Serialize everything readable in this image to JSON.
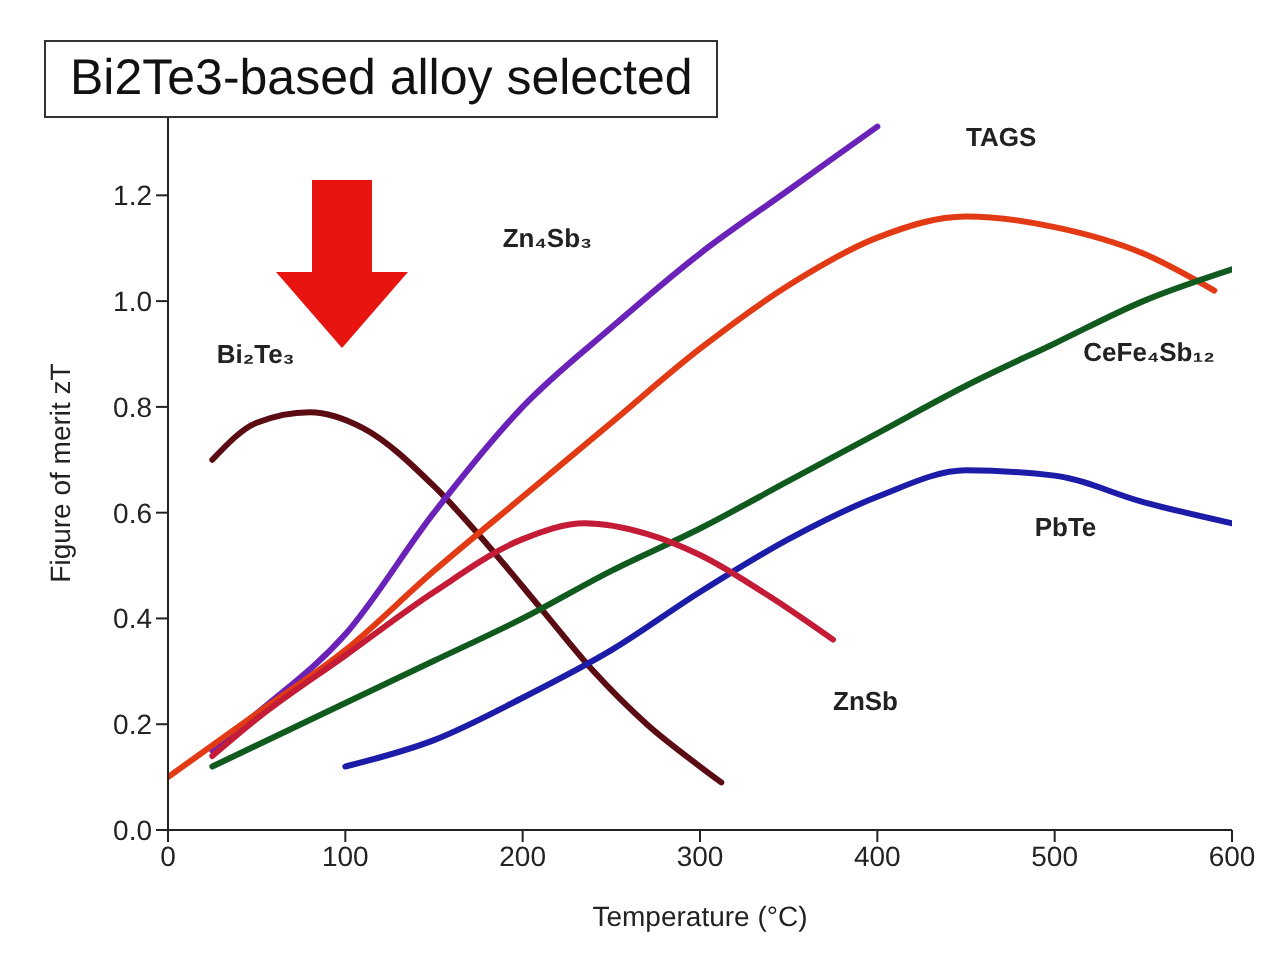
{
  "chart_data": {
    "type": "line",
    "title": "Bi2Te3-based alloy selected",
    "xlabel": "Temperature (°C)",
    "ylabel": "Figure of merit zT",
    "xlim": [
      0,
      600
    ],
    "xticks": [
      0,
      100,
      200,
      300,
      400,
      500,
      600
    ],
    "ylim": [
      0,
      1.35
    ],
    "yticks": [
      {
        "value": 0,
        "label": "0.0"
      },
      0.2,
      0.4,
      0.6,
      0.8,
      {
        "value": 1,
        "label": "1.0"
      },
      1.2
    ],
    "grid": false,
    "legend": false,
    "marker": "none",
    "line_style": "solid",
    "series": [
      {
        "name": "Bi₂Te₃",
        "color": "#5a0c12",
        "x": [
          25,
          50,
          80,
          110,
          150,
          180,
          210,
          240,
          270,
          300,
          312
        ],
        "values": [
          0.7,
          0.77,
          0.79,
          0.76,
          0.65,
          0.54,
          0.42,
          0.3,
          0.2,
          0.12,
          0.09
        ]
      },
      {
        "name": "Zn₄Sb₃",
        "color": "#6a22b8",
        "x": [
          25,
          50,
          100,
          150,
          200,
          250,
          300,
          350,
          400
        ],
        "values": [
          0.15,
          0.22,
          0.37,
          0.6,
          0.8,
          0.95,
          1.09,
          1.21,
          1.33
        ]
      },
      {
        "name": "TAGS",
        "color": "#e23a14",
        "x": [
          0,
          50,
          100,
          150,
          200,
          250,
          300,
          350,
          400,
          450,
          500,
          550,
          590
        ],
        "values": [
          0.1,
          0.22,
          0.34,
          0.49,
          0.63,
          0.77,
          0.91,
          1.03,
          1.12,
          1.16,
          1.14,
          1.09,
          1.02
        ]
      },
      {
        "name": "CeFe₄Sb₁₂",
        "color": "#0f5a1c",
        "x": [
          25,
          100,
          150,
          200,
          250,
          300,
          350,
          400,
          450,
          500,
          550,
          600
        ],
        "values": [
          0.12,
          0.24,
          0.32,
          0.4,
          0.49,
          0.57,
          0.66,
          0.75,
          0.84,
          0.92,
          1.0,
          1.06
        ]
      },
      {
        "name": "PbTe",
        "color": "#1c1ca8",
        "x": [
          100,
          150,
          200,
          250,
          300,
          350,
          400,
          450,
          500,
          550,
          600
        ],
        "values": [
          0.12,
          0.17,
          0.25,
          0.34,
          0.45,
          0.55,
          0.63,
          0.68,
          0.67,
          0.62,
          0.58
        ]
      },
      {
        "name": "ZnSb",
        "color": "#c41c36",
        "x": [
          25,
          50,
          100,
          150,
          200,
          235,
          270,
          300,
          340,
          375
        ],
        "values": [
          0.14,
          0.21,
          0.33,
          0.45,
          0.55,
          0.58,
          0.56,
          0.52,
          0.44,
          0.36
        ]
      }
    ]
  }
}
